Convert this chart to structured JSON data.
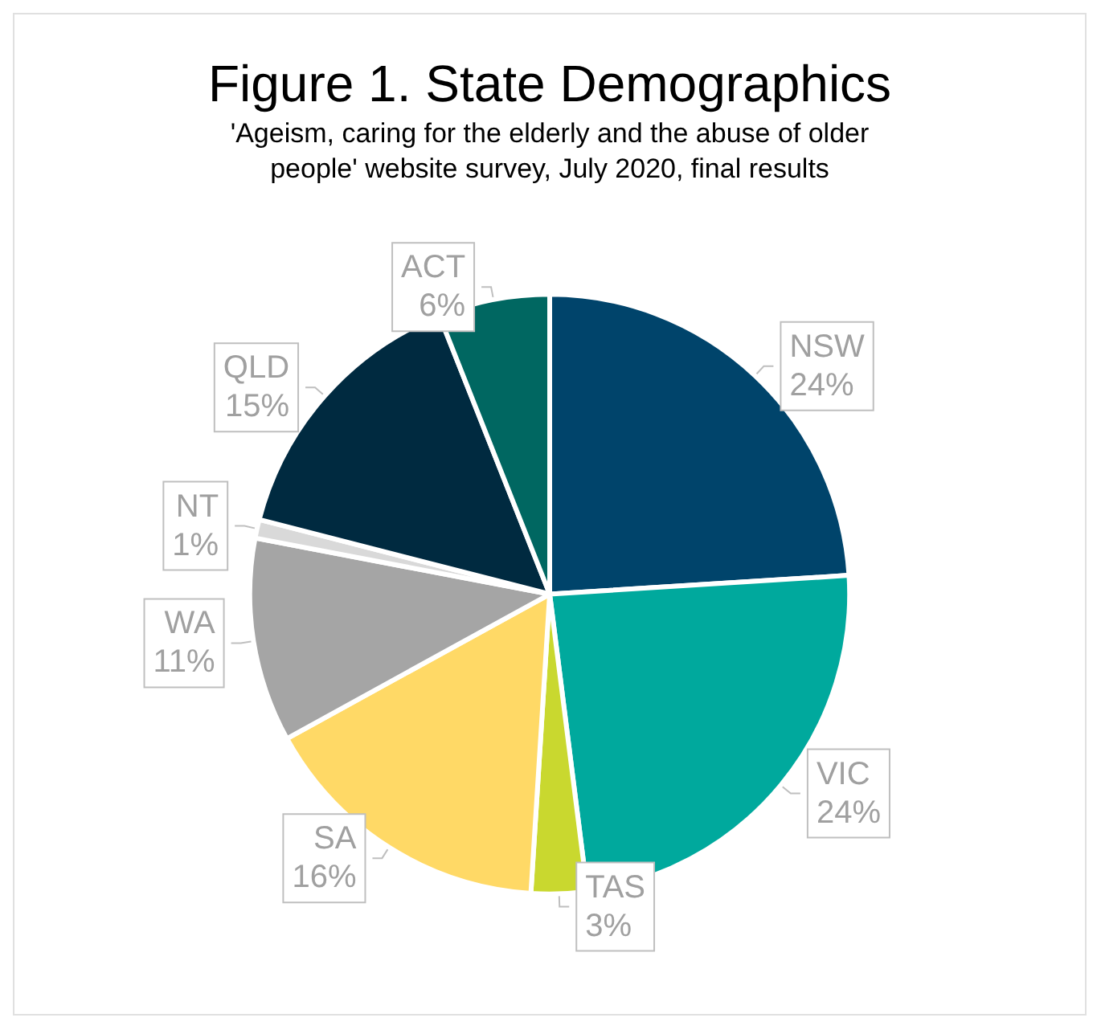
{
  "chart_data": {
    "type": "pie",
    "title": "Figure 1. State Demographics",
    "subtitle": "'Ageism, caring for the elderly and the abuse of older\npeople' website survey, July 2020, final results",
    "categories": [
      "NSW",
      "VIC",
      "TAS",
      "SA",
      "WA",
      "NT",
      "QLD",
      "ACT"
    ],
    "values": [
      24,
      24,
      3,
      16,
      11,
      1,
      15,
      6
    ],
    "value_labels": [
      "24%",
      "24%",
      "3%",
      "16%",
      "11%",
      "1%",
      "15%",
      "6%"
    ],
    "colors": [
      "#00446b",
      "#00a99d",
      "#c9d82f",
      "#ffd966",
      "#a5a5a5",
      "#d9d9d9",
      "#002a40",
      "#006761"
    ],
    "legend": false
  }
}
